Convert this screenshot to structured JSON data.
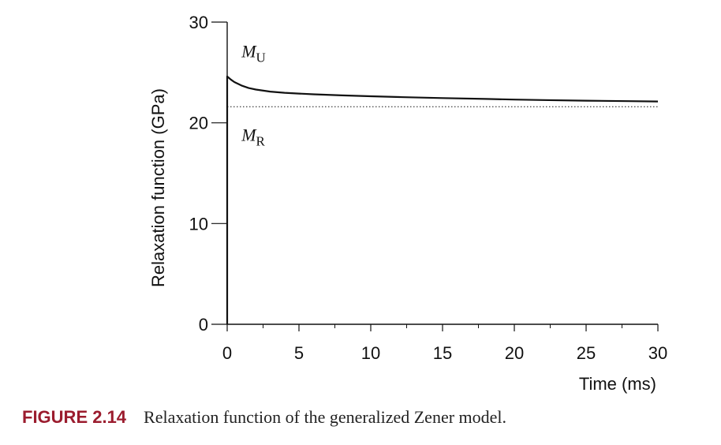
{
  "chart_data": {
    "type": "line",
    "title": "",
    "xlabel": "Time (ms)",
    "ylabel": "Relaxation function (GPa)",
    "xlim": [
      0,
      30
    ],
    "ylim": [
      0,
      30
    ],
    "xticks": [
      0,
      5,
      10,
      15,
      20,
      25,
      30
    ],
    "yticks": [
      0,
      10,
      20,
      30
    ],
    "grid": false,
    "series": [
      {
        "name": "Relaxation function",
        "style": "solid",
        "x": [
          0,
          0,
          0.25,
          0.5,
          1,
          1.5,
          2,
          3,
          4,
          5,
          6,
          8,
          10,
          12,
          15,
          18,
          20,
          22,
          25,
          28,
          30
        ],
        "y": [
          0,
          24.6,
          24.3,
          24.05,
          23.7,
          23.45,
          23.3,
          23.1,
          22.98,
          22.9,
          22.83,
          22.72,
          22.64,
          22.56,
          22.46,
          22.37,
          22.31,
          22.26,
          22.2,
          22.15,
          22.12
        ]
      },
      {
        "name": "M_R asymptote",
        "style": "dotted",
        "x": [
          0,
          30
        ],
        "y": [
          21.6,
          21.6
        ]
      }
    ],
    "annotations": [
      {
        "symbol": "M",
        "subscript": "U",
        "x": 1,
        "y": 26.5
      },
      {
        "symbol": "M",
        "subscript": "R",
        "x": 1,
        "y": 18.2
      }
    ]
  },
  "caption": {
    "label": "FIGURE 2.14",
    "text": "Relaxation function of the generalized Zener model."
  },
  "colors": {
    "curve": "#111111",
    "caption_label": "#9b1c2e"
  }
}
